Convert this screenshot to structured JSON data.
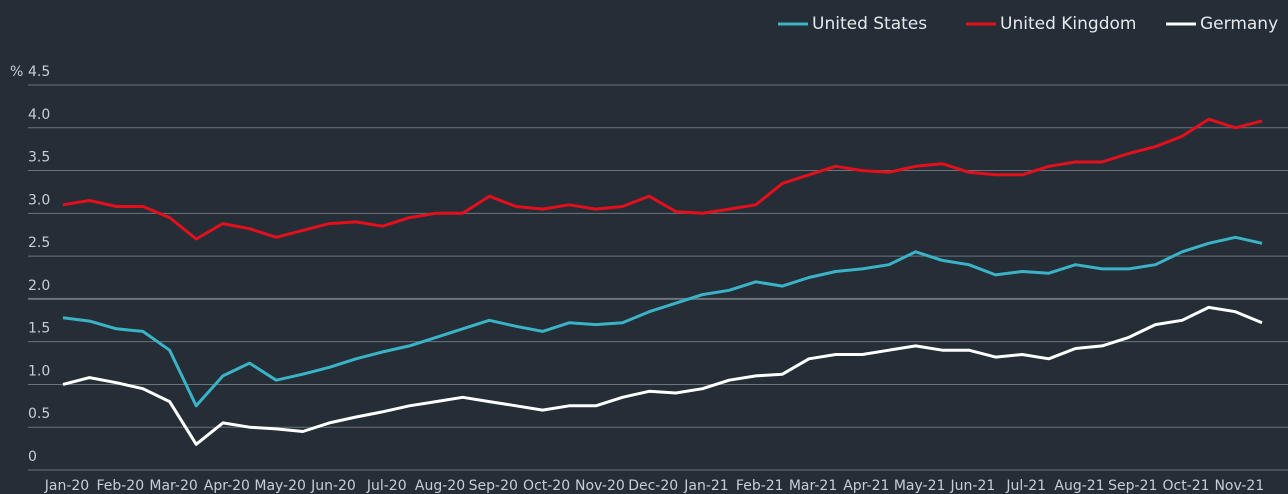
{
  "chart_data": {
    "type": "line",
    "y_unit": "%",
    "categories": [
      "Jan-20",
      null,
      "Feb-20",
      null,
      "Mar-20",
      null,
      "Apr-20",
      null,
      "May-20",
      null,
      "Jun-20",
      null,
      "Jul-20",
      null,
      "Aug-20",
      null,
      "Sep-20",
      null,
      "Oct-20",
      null,
      "Nov-20",
      null,
      "Dec-20",
      null,
      "Jan-21",
      null,
      "Feb-21",
      null,
      "Mar-21",
      null,
      "Apr-21",
      null,
      "May-21",
      null,
      "Jun-21",
      null,
      "Jul-21",
      null,
      "Aug-21",
      null,
      "Sep-21",
      null,
      "Oct-21",
      null,
      "Nov-21",
      null
    ],
    "series": [
      {
        "name": "United States",
        "color": "#3bb3c7",
        "values": [
          1.78,
          1.74,
          1.65,
          1.62,
          1.4,
          0.75,
          1.1,
          1.25,
          1.05,
          1.12,
          1.2,
          1.3,
          1.38,
          1.45,
          1.55,
          1.65,
          1.75,
          1.68,
          1.62,
          1.72,
          1.7,
          1.72,
          1.85,
          1.95,
          2.05,
          2.1,
          2.2,
          2.15,
          2.25,
          2.32,
          2.35,
          2.4,
          2.55,
          2.45,
          2.4,
          2.28,
          2.32,
          2.3,
          2.4,
          2.35,
          2.35,
          2.4,
          2.55,
          2.65,
          2.72,
          2.65
        ]
      },
      {
        "name": "United Kingdom",
        "color": "#e3101c",
        "values": [
          3.1,
          3.15,
          3.08,
          3.08,
          2.95,
          2.7,
          2.88,
          2.82,
          2.72,
          2.8,
          2.88,
          2.9,
          2.85,
          2.95,
          3.0,
          3.0,
          3.2,
          3.08,
          3.05,
          3.1,
          3.05,
          3.08,
          3.2,
          3.02,
          3.0,
          3.05,
          3.1,
          3.35,
          3.45,
          3.55,
          3.5,
          3.48,
          3.55,
          3.58,
          3.48,
          3.45,
          3.45,
          3.55,
          3.6,
          3.6,
          3.7,
          3.78,
          3.9,
          4.1,
          4.0,
          4.08
        ]
      },
      {
        "name": "Germany",
        "color": "#ffffff",
        "values": [
          1.0,
          1.08,
          1.02,
          0.95,
          0.8,
          0.3,
          0.55,
          0.5,
          0.48,
          0.45,
          0.55,
          0.62,
          0.68,
          0.75,
          0.8,
          0.85,
          0.8,
          0.75,
          0.7,
          0.75,
          0.75,
          0.85,
          0.92,
          0.9,
          0.95,
          1.05,
          1.1,
          1.12,
          1.3,
          1.35,
          1.35,
          1.4,
          1.45,
          1.4,
          1.4,
          1.32,
          1.35,
          1.3,
          1.42,
          1.45,
          1.55,
          1.7,
          1.75,
          1.9,
          1.85,
          1.72
        ]
      }
    ],
    "ylim": [
      0,
      4.5
    ],
    "yticks": [
      0,
      0.5,
      {
        "value": 1,
        "label": "1.0"
      },
      1.5,
      {
        "value": 2,
        "label": "2.0"
      },
      2.5,
      {
        "value": 3,
        "label": "3.0"
      },
      3.5,
      {
        "value": 4,
        "label": "4.0"
      },
      4.5
    ],
    "grid": true,
    "legend": "top-right"
  }
}
